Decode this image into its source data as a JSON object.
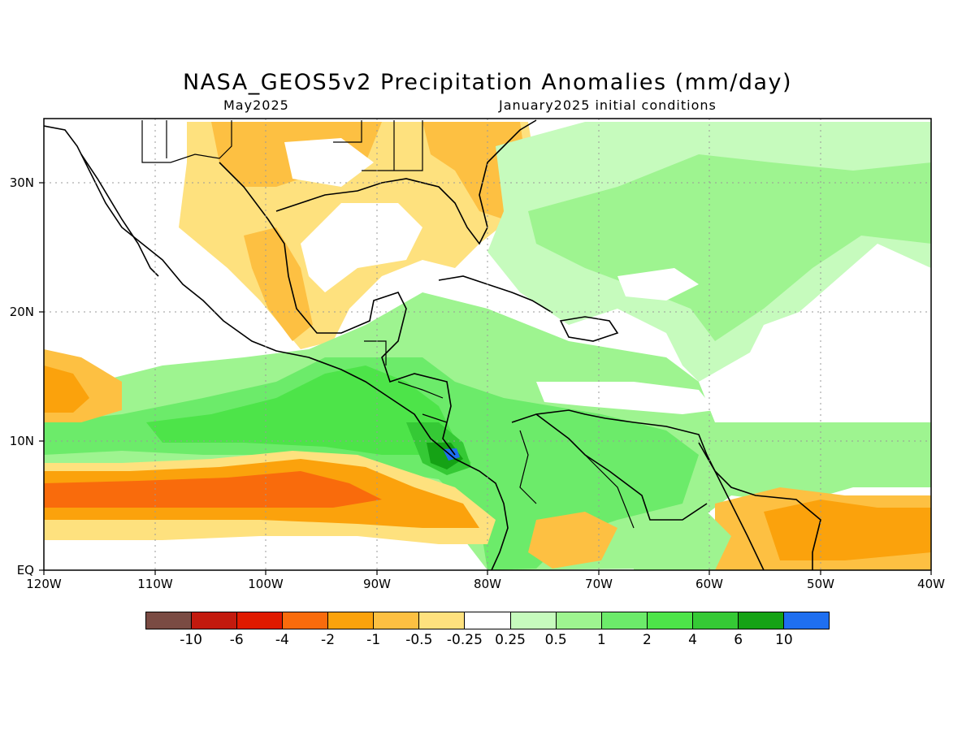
{
  "header": {
    "title": "NASA_GEOS5v2 Precipitation Anomalies (mm/day)",
    "valid_month": "May2025",
    "initial_conditions": "January2025 initial conditions"
  },
  "axes": {
    "lon_labels": [
      "120W",
      "110W",
      "100W",
      "90W",
      "80W",
      "70W",
      "60W",
      "50W",
      "40W"
    ],
    "lat_labels": [
      "EQ",
      "10N",
      "20N",
      "30N"
    ],
    "lon_range": [
      -120,
      -40
    ],
    "lat_range": [
      0,
      35
    ],
    "grid": "dotted"
  },
  "legend": {
    "labels": [
      "-10",
      "-6",
      "-4",
      "-2",
      "-1",
      "-0.5",
      "-0.25",
      "0.25",
      "0.5",
      "1",
      "2",
      "4",
      "6",
      "10"
    ],
    "colors": [
      "#7a4b43",
      "#c31a0e",
      "#e01a00",
      "#f96b0c",
      "#fba20c",
      "#fdc042",
      "#fee17e",
      "#ffffff",
      "#c6fbbd",
      "#9ef490",
      "#6ceb6a",
      "#4de449",
      "#35c935",
      "#15a215",
      "#1f6ff0"
    ]
  },
  "colors": {
    "dry_light": "#fee17e",
    "dry_mid": "#fdc042",
    "dry_strong": "#fba20c",
    "dry_orange": "#f96b0c",
    "dry_red": "#e01a00",
    "wet_pale": "#c6fbbd",
    "wet_light": "#9ef490",
    "wet_mid": "#6ceb6a",
    "wet_bright": "#4de449",
    "wet_strong": "#35c935",
    "wet_deep": "#15a215",
    "wet_extreme": "#1f6ff0"
  }
}
